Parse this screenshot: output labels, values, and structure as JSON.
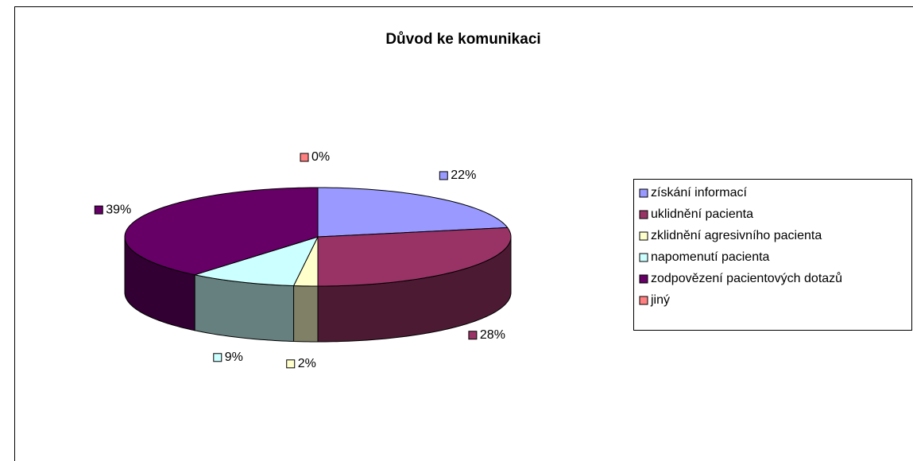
{
  "chart_data": {
    "type": "pie",
    "title": "Důvod ke komunikaci",
    "categories": [
      "získání informací",
      "uklidnění pacienta",
      "zklidnění agresivního pacienta",
      "napomenutí pacienta",
      "zodpovězení pacientových dotazů",
      "jiný"
    ],
    "values": [
      22,
      28,
      2,
      9,
      39,
      0
    ],
    "value_labels": [
      "22%",
      "28%",
      "2%",
      "9%",
      "39%",
      "0%"
    ],
    "colors": [
      "#9999ff",
      "#993366",
      "#ffffcc",
      "#ccffff",
      "#660066",
      "#ff8080"
    ],
    "legend": "right"
  }
}
